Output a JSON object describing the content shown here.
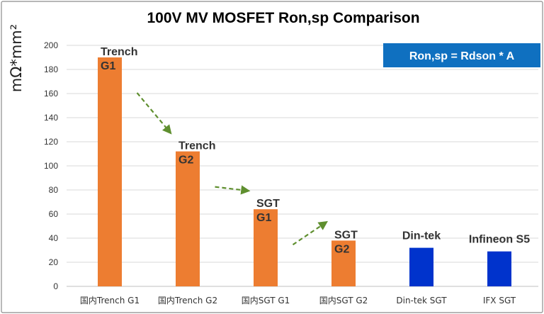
{
  "chart_data": {
    "type": "bar",
    "title": "100V  MV MOSFET Ron,sp Comparison",
    "ylabel": "mΩ*mm²",
    "xlabel": "",
    "ylim": [
      0,
      200
    ],
    "yticks": [
      0,
      20,
      40,
      60,
      80,
      100,
      120,
      140,
      160,
      180,
      200
    ],
    "grid": true,
    "categories": [
      "国内Trench G1",
      "国内Trench G2",
      "国内SGT G1",
      "国内SGT G2",
      "Din-tek SGT",
      "IFX SGT"
    ],
    "values": [
      190,
      112,
      64,
      38,
      32,
      29
    ],
    "bar_colors": [
      "#ed7d31",
      "#ed7d31",
      "#ed7d31",
      "#ed7d31",
      "#0033cc",
      "#0033cc"
    ],
    "data_labels": [
      [
        "Trench",
        "G1"
      ],
      [
        "Trench",
        "G2"
      ],
      [
        "SGT",
        "G1"
      ],
      [
        "SGT",
        "G2"
      ],
      [
        "Din-tek"
      ],
      [
        "Infineon S5"
      ]
    ],
    "annotation": "Ron,sp = Rdson * A",
    "annotation_color": "#0f70c0",
    "trend_color": "#5f8f2f"
  }
}
